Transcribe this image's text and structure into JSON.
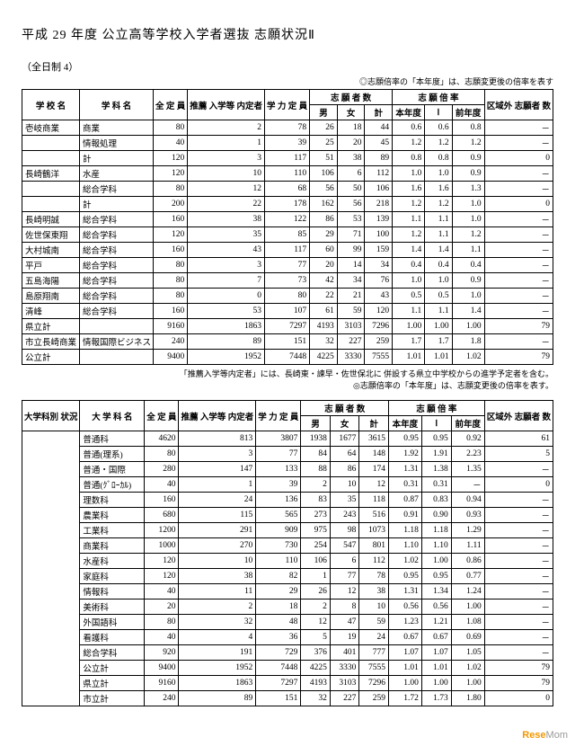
{
  "title": "平成 29 年度 公立高等学校入学者選抜 志願状況Ⅱ",
  "sub": "（全日制 4）",
  "note_top": "◎志願倍率の「本年度」は、志願変更後の倍率を表す",
  "hdr1": {
    "school": "学 校 名",
    "dept": "学 科 名",
    "cap": "全\n定 員",
    "rec": "推薦\n入学等\n内定者",
    "acap": "学 力\n定 員",
    "app": "志 願 者 数",
    "m": "男",
    "f": "女",
    "t": "計",
    "rate": "志 願 倍 率",
    "cy": "本年度",
    "i": "Ⅰ",
    "py": "前年度",
    "ext": "区域外\n志願者\n数"
  },
  "t1": [
    [
      "壱岐商業",
      "商業",
      "80",
      "2",
      "78",
      "26",
      "18",
      "44",
      "0.6",
      "0.6",
      "0.8",
      "－"
    ],
    [
      "",
      "情報処理",
      "40",
      "1",
      "39",
      "25",
      "20",
      "45",
      "1.2",
      "1.2",
      "1.2",
      "－"
    ],
    [
      "",
      "計",
      "120",
      "3",
      "117",
      "51",
      "38",
      "89",
      "0.8",
      "0.8",
      "0.9",
      "0"
    ],
    [
      "長崎鶴洋",
      "水産",
      "120",
      "10",
      "110",
      "106",
      "6",
      "112",
      "1.0",
      "1.0",
      "0.9",
      "－"
    ],
    [
      "",
      "総合学科",
      "80",
      "12",
      "68",
      "56",
      "50",
      "106",
      "1.6",
      "1.6",
      "1.3",
      "－"
    ],
    [
      "",
      "計",
      "200",
      "22",
      "178",
      "162",
      "56",
      "218",
      "1.2",
      "1.2",
      "1.0",
      "0"
    ],
    [
      "長崎明誠",
      "総合学科",
      "160",
      "38",
      "122",
      "86",
      "53",
      "139",
      "1.1",
      "1.1",
      "1.0",
      "－"
    ],
    [
      "佐世保東翔",
      "総合学科",
      "120",
      "35",
      "85",
      "29",
      "71",
      "100",
      "1.2",
      "1.1",
      "1.2",
      "－"
    ],
    [
      "大村城南",
      "総合学科",
      "160",
      "43",
      "117",
      "60",
      "99",
      "159",
      "1.4",
      "1.4",
      "1.1",
      "－"
    ],
    [
      "平戸",
      "総合学科",
      "80",
      "3",
      "77",
      "20",
      "14",
      "34",
      "0.4",
      "0.4",
      "0.4",
      "－"
    ],
    [
      "五島海陽",
      "総合学科",
      "80",
      "7",
      "73",
      "42",
      "34",
      "76",
      "1.0",
      "1.0",
      "0.9",
      "－"
    ],
    [
      "島原翔南",
      "総合学科",
      "80",
      "0",
      "80",
      "22",
      "21",
      "43",
      "0.5",
      "0.5",
      "1.0",
      "－"
    ],
    [
      "清峰",
      "総合学科",
      "160",
      "53",
      "107",
      "61",
      "59",
      "120",
      "1.1",
      "1.1",
      "1.4",
      "－"
    ],
    [
      "県立計",
      "",
      "9160",
      "1863",
      "7297",
      "4193",
      "3103",
      "7296",
      "1.00",
      "1.00",
      "1.00",
      "79"
    ],
    [
      "市立長崎商業",
      "情報国際ビジネス",
      "240",
      "89",
      "151",
      "32",
      "227",
      "259",
      "1.7",
      "1.7",
      "1.8",
      "－"
    ],
    [
      "公立計",
      "",
      "9400",
      "1952",
      "7448",
      "4225",
      "3330",
      "7555",
      "1.01",
      "1.01",
      "1.02",
      "79"
    ]
  ],
  "note_mid1": "「推薦入学等内定者」には、長崎東・諫早・佐世保北に\n併設する県立中学校からの進学予定者を含む。",
  "note_mid2": "◎志願倍率の「本年度」は、志願変更後の倍率を表す。",
  "hdr2": {
    "cat": "大学科別\n状況",
    "dept": "大 学 科 名"
  },
  "t2": [
    [
      "普通科",
      "4620",
      "813",
      "3807",
      "1938",
      "1677",
      "3615",
      "0.95",
      "0.95",
      "0.92",
      "61"
    ],
    [
      "普通(理系)",
      "80",
      "3",
      "77",
      "84",
      "64",
      "148",
      "1.92",
      "1.91",
      "2.23",
      "5"
    ],
    [
      "普通・国際",
      "280",
      "147",
      "133",
      "88",
      "86",
      "174",
      "1.31",
      "1.38",
      "1.35",
      "－"
    ],
    [
      "普通(ｸﾞﾛｰｶﾙ)",
      "40",
      "1",
      "39",
      "2",
      "10",
      "12",
      "0.31",
      "0.31",
      "－",
      "0"
    ],
    [
      "理数科",
      "160",
      "24",
      "136",
      "83",
      "35",
      "118",
      "0.87",
      "0.83",
      "0.94",
      "－"
    ],
    [
      "農業科",
      "680",
      "115",
      "565",
      "273",
      "243",
      "516",
      "0.91",
      "0.90",
      "0.93",
      "－"
    ],
    [
      "工業科",
      "1200",
      "291",
      "909",
      "975",
      "98",
      "1073",
      "1.18",
      "1.18",
      "1.29",
      "－"
    ],
    [
      "商業科",
      "1000",
      "270",
      "730",
      "254",
      "547",
      "801",
      "1.10",
      "1.10",
      "1.11",
      "－"
    ],
    [
      "水産科",
      "120",
      "10",
      "110",
      "106",
      "6",
      "112",
      "1.02",
      "1.00",
      "0.86",
      "－"
    ],
    [
      "家庭科",
      "120",
      "38",
      "82",
      "1",
      "77",
      "78",
      "0.95",
      "0.95",
      "0.77",
      "－"
    ],
    [
      "情報科",
      "40",
      "11",
      "29",
      "26",
      "12",
      "38",
      "1.31",
      "1.34",
      "1.24",
      "－"
    ],
    [
      "美術科",
      "20",
      "2",
      "18",
      "2",
      "8",
      "10",
      "0.56",
      "0.56",
      "1.00",
      "－"
    ],
    [
      "外国語科",
      "80",
      "32",
      "48",
      "12",
      "47",
      "59",
      "1.23",
      "1.21",
      "1.08",
      "－"
    ],
    [
      "看護科",
      "40",
      "4",
      "36",
      "5",
      "19",
      "24",
      "0.67",
      "0.67",
      "0.69",
      "－"
    ],
    [
      "総合学科",
      "920",
      "191",
      "729",
      "376",
      "401",
      "777",
      "1.07",
      "1.07",
      "1.05",
      "－"
    ],
    [
      "公立計",
      "9400",
      "1952",
      "7448",
      "4225",
      "3330",
      "7555",
      "1.01",
      "1.01",
      "1.02",
      "79"
    ],
    [
      "県立計",
      "9160",
      "1863",
      "7297",
      "4193",
      "3103",
      "7296",
      "1.00",
      "1.00",
      "1.00",
      "79"
    ],
    [
      "市立計",
      "240",
      "89",
      "151",
      "32",
      "227",
      "259",
      "1.72",
      "1.73",
      "1.80",
      "0"
    ]
  ],
  "wm": "ReseMom"
}
